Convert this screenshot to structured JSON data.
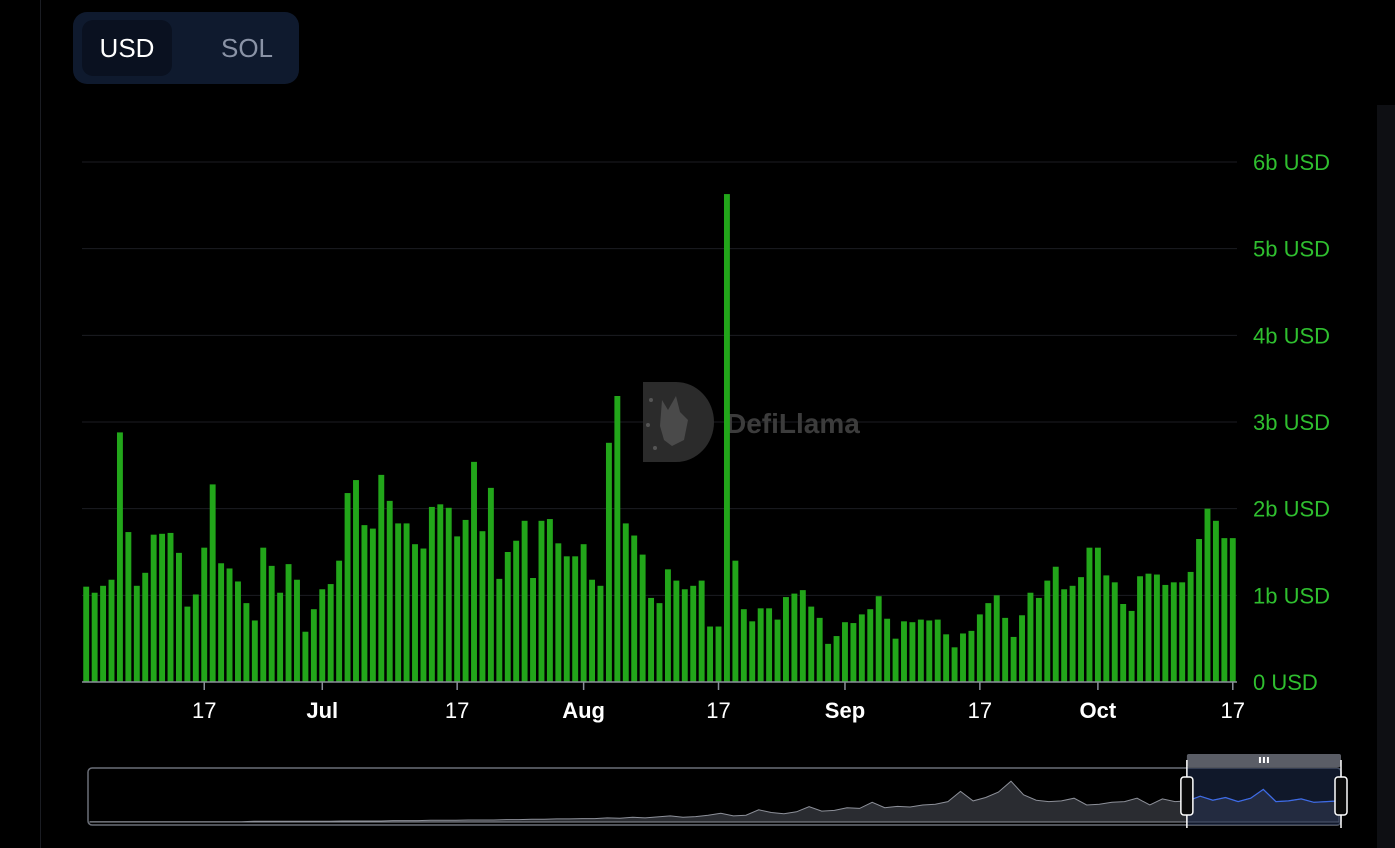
{
  "currency_toggle": {
    "options": [
      "USD",
      "SOL"
    ],
    "selected": "USD"
  },
  "colors": {
    "bar": "#22a61a",
    "axis_label": "#2fbf2f",
    "grid": "#1b1d22",
    "x_label": "#ffffff",
    "brush_fill": "#1d2c4d",
    "brush_line": "#3d6be8"
  },
  "watermark": {
    "text": "DefiLlama",
    "icon": "llama-logo-icon"
  },
  "chart_data": {
    "type": "bar",
    "title": "",
    "xlabel": "",
    "ylabel": "",
    "ylim": [
      0,
      6
    ],
    "y_unit": "b USD",
    "y_ticks": [
      {
        "value": 0,
        "label": "0 USD"
      },
      {
        "value": 1,
        "label": "1b USD"
      },
      {
        "value": 2,
        "label": "2b USD"
      },
      {
        "value": 3,
        "label": "3b USD"
      },
      {
        "value": 4,
        "label": "4b USD"
      },
      {
        "value": 5,
        "label": "5b USD"
      },
      {
        "value": 6,
        "label": "6b USD"
      }
    ],
    "start_date": "2024-06-03",
    "x_ticks": [
      {
        "date": "2024-06-17",
        "label": "17",
        "bold": false
      },
      {
        "date": "2024-07-01",
        "label": "Jul",
        "bold": true
      },
      {
        "date": "2024-07-17",
        "label": "17",
        "bold": false
      },
      {
        "date": "2024-08-01",
        "label": "Aug",
        "bold": true
      },
      {
        "date": "2024-08-17",
        "label": "17",
        "bold": false
      },
      {
        "date": "2024-09-01",
        "label": "Sep",
        "bold": true
      },
      {
        "date": "2024-09-17",
        "label": "17",
        "bold": false
      },
      {
        "date": "2024-10-01",
        "label": "Oct",
        "bold": true
      },
      {
        "date": "2024-10-17",
        "label": "17",
        "bold": false
      }
    ],
    "values": [
      1.1,
      1.03,
      1.11,
      1.18,
      2.88,
      1.73,
      1.11,
      1.26,
      1.7,
      1.71,
      1.72,
      1.49,
      0.87,
      1.01,
      1.55,
      2.28,
      1.37,
      1.31,
      1.16,
      0.91,
      0.71,
      1.55,
      1.34,
      1.03,
      1.36,
      1.18,
      0.58,
      0.84,
      1.07,
      1.13,
      1.4,
      2.18,
      2.33,
      1.81,
      1.77,
      2.39,
      2.09,
      1.83,
      1.83,
      1.59,
      1.54,
      2.02,
      2.05,
      2.01,
      1.68,
      1.87,
      2.54,
      1.74,
      2.24,
      1.19,
      1.5,
      1.63,
      1.86,
      1.2,
      1.86,
      1.88,
      1.6,
      1.45,
      1.45,
      1.59,
      1.18,
      1.11,
      2.76,
      3.3,
      1.83,
      1.69,
      1.47,
      0.97,
      0.91,
      1.3,
      1.17,
      1.07,
      1.11,
      1.17,
      0.64,
      0.64,
      5.63,
      1.4,
      0.84,
      0.7,
      0.85,
      0.85,
      0.72,
      0.98,
      1.02,
      1.06,
      0.87,
      0.74,
      0.44,
      0.53,
      0.69,
      0.68,
      0.78,
      0.84,
      0.99,
      0.73,
      0.5,
      0.7,
      0.69,
      0.72,
      0.71,
      0.72,
      0.55,
      0.4,
      0.56,
      0.59,
      0.78,
      0.91,
      1.0,
      0.74,
      0.52,
      0.77,
      1.03,
      0.97,
      1.17,
      1.33,
      1.07,
      1.11,
      1.21,
      1.55,
      1.55,
      1.23,
      1.15,
      0.9,
      0.82,
      1.22,
      1.25,
      1.24,
      1.12,
      1.15,
      1.15,
      1.27,
      1.65,
      2.0,
      1.86,
      1.66,
      1.66
    ]
  },
  "brush": {
    "selection_start_fraction": 0.877,
    "selection_end_fraction": 1.0,
    "handle_grip_icon": "grip-icon",
    "overview_values": [
      0.01,
      0.01,
      0.01,
      0.01,
      0.01,
      0.01,
      0.01,
      0.01,
      0.01,
      0.01,
      0.01,
      0.01,
      0.01,
      0.02,
      0.02,
      0.02,
      0.02,
      0.02,
      0.02,
      0.02,
      0.03,
      0.03,
      0.03,
      0.03,
      0.04,
      0.04,
      0.04,
      0.05,
      0.05,
      0.05,
      0.06,
      0.06,
      0.06,
      0.07,
      0.07,
      0.08,
      0.08,
      0.09,
      0.09,
      0.1,
      0.1,
      0.12,
      0.11,
      0.14,
      0.12,
      0.15,
      0.18,
      0.14,
      0.16,
      0.2,
      0.26,
      0.18,
      0.2,
      0.36,
      0.28,
      0.24,
      0.3,
      0.45,
      0.32,
      0.34,
      0.42,
      0.4,
      0.58,
      0.42,
      0.46,
      0.44,
      0.5,
      0.52,
      0.6,
      0.9,
      0.62,
      0.72,
      0.88,
      1.2,
      0.8,
      0.64,
      0.6,
      0.62,
      0.7,
      0.5,
      0.52,
      0.58,
      0.6,
      0.7,
      0.5,
      0.68,
      0.6,
      0.62,
      0.76,
      0.64,
      0.72,
      0.6,
      0.7,
      0.96,
      0.6,
      0.62,
      0.68,
      0.58,
      0.6,
      0.62
    ]
  }
}
